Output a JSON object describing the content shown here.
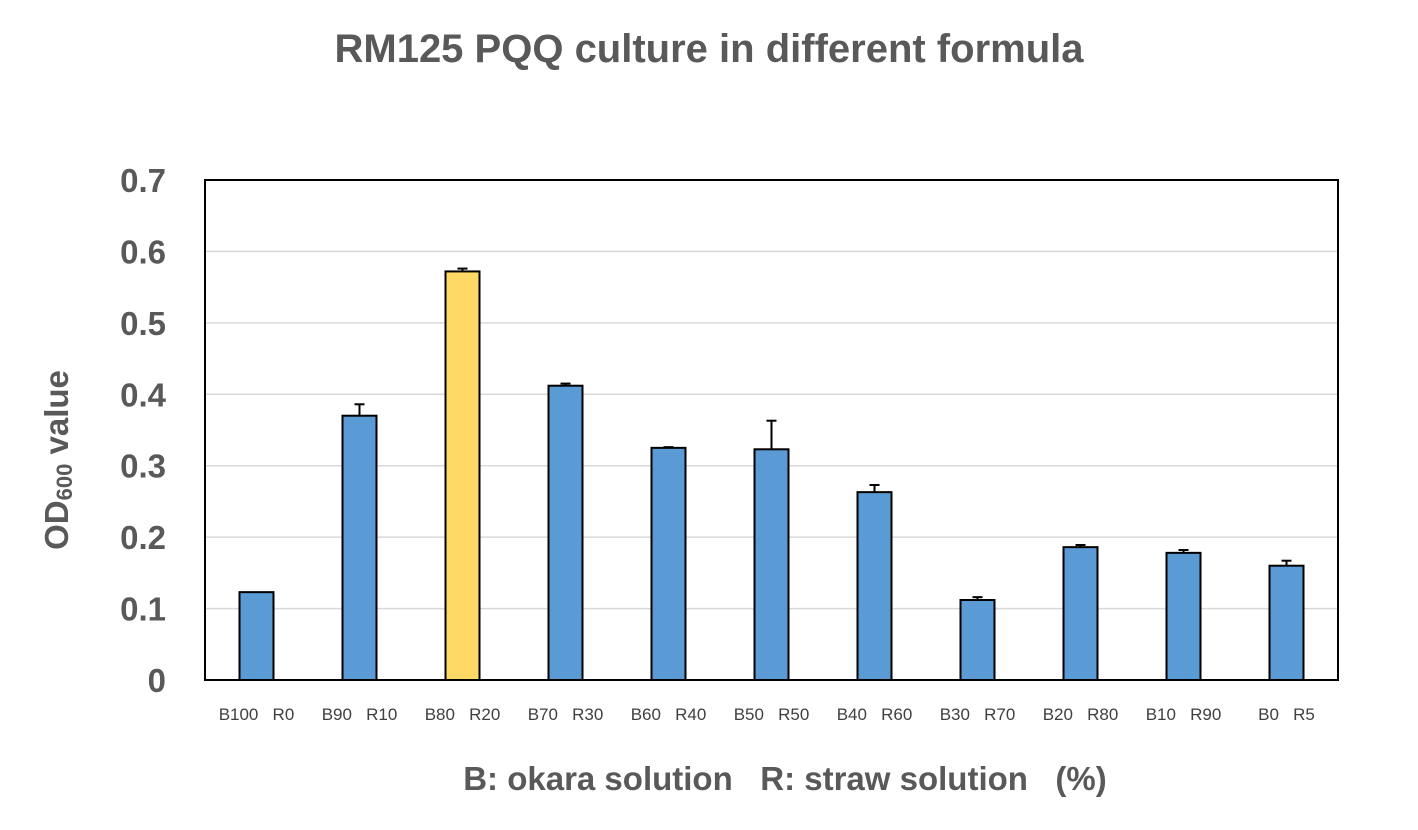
{
  "chart_data": {
    "type": "bar",
    "title": "RM125 PQQ culture in different formula",
    "xlabel": "B: okara solution   R: straw solution   (%)",
    "ylabel": {
      "main": "OD",
      "subscript": "600",
      "suffix": " value"
    },
    "ylim": [
      0,
      0.7
    ],
    "yticks": [
      0,
      0.1,
      0.2,
      0.3,
      0.4,
      0.5,
      0.6,
      0.7
    ],
    "ytick_labels": [
      "0",
      "0.1",
      "0.2",
      "0.3",
      "0.4",
      "0.5",
      "0.6",
      "0.7"
    ],
    "grid": true,
    "categories": [
      "B100   R0",
      "B90   R10",
      "B80   R20",
      "B70   R30",
      "B60   R40",
      "B50   R50",
      "B40   R60",
      "B30   R70",
      "B20   R80",
      "B10   R90",
      "B0   R5"
    ],
    "values": [
      0.123,
      0.37,
      0.572,
      0.412,
      0.325,
      0.323,
      0.263,
      0.112,
      0.186,
      0.178,
      0.16
    ],
    "errors": [
      0.0,
      0.016,
      0.004,
      0.003,
      0.001,
      0.04,
      0.01,
      0.004,
      0.003,
      0.004,
      0.007
    ],
    "colors": [
      "#5b9bd5",
      "#5b9bd5",
      "#ffd966",
      "#5b9bd5",
      "#5b9bd5",
      "#5b9bd5",
      "#5b9bd5",
      "#5b9bd5",
      "#5b9bd5",
      "#5b9bd5",
      "#5b9bd5"
    ]
  }
}
